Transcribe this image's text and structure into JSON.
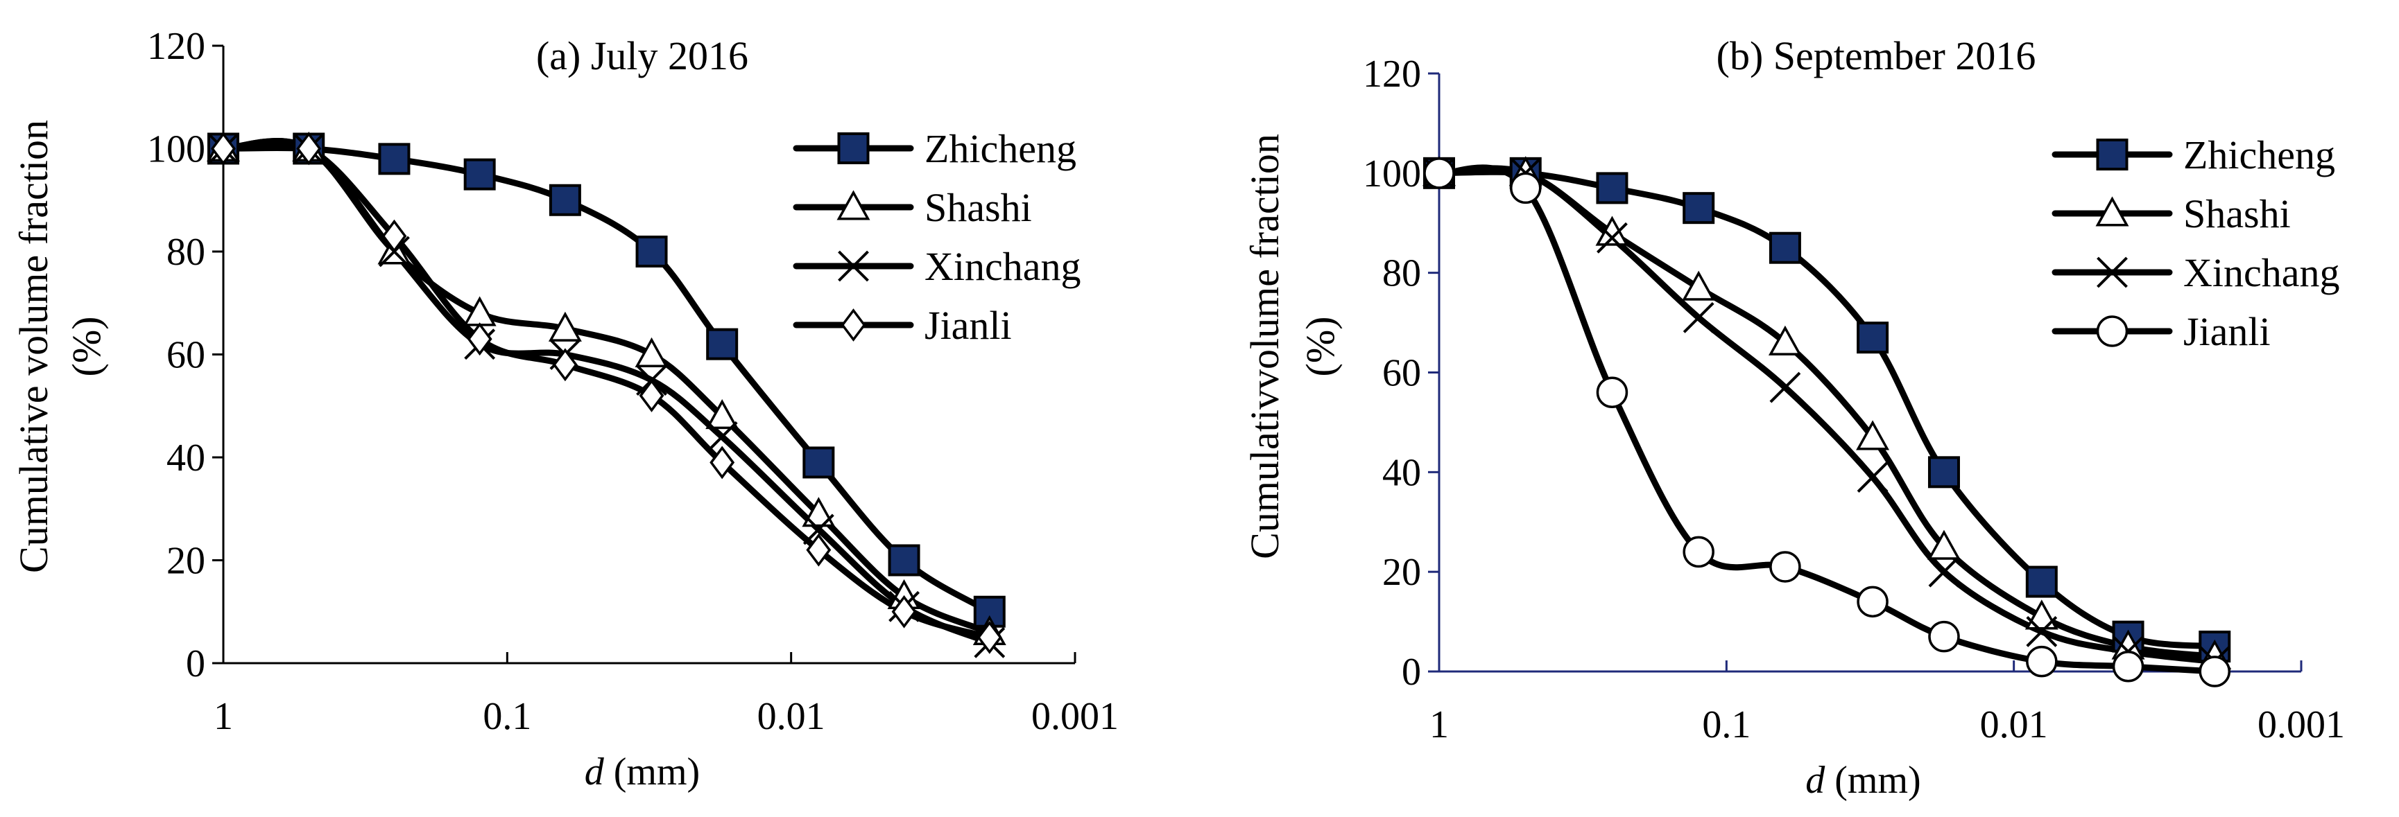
{
  "chart_data": [
    {
      "type": "line",
      "title": "(a) July 2016",
      "xlabel_var": "d",
      "xlabel_unit": " (mm)",
      "ylabel_line1": "Cumulative volume fraction",
      "ylabel_line2": "(%)",
      "xscale": "log-reversed",
      "xlim": [
        1,
        0.001
      ],
      "ylim": [
        0,
        120
      ],
      "xticks": [
        {
          "value": 1,
          "label": "1"
        },
        {
          "value": 0.1,
          "label": "0.1"
        },
        {
          "value": 0.01,
          "label": "0.01"
        },
        {
          "value": 0.001,
          "label": "0.001"
        }
      ],
      "yticks": [
        {
          "value": 0,
          "label": "0"
        },
        {
          "value": 20,
          "label": "20"
        },
        {
          "value": 40,
          "label": "40"
        },
        {
          "value": 60,
          "label": "60"
        },
        {
          "value": 80,
          "label": "80"
        },
        {
          "value": 100,
          "label": "100"
        },
        {
          "value": 120,
          "label": "120"
        }
      ],
      "x": [
        1,
        0.5,
        0.25,
        0.125,
        0.0625,
        0.031,
        0.0175,
        0.008,
        0.004,
        0.002
      ],
      "legend_position": "top-right",
      "series": [
        {
          "name": "Zhicheng",
          "marker": "square-filled",
          "values": [
            100,
            100,
            98,
            95,
            90,
            80,
            62,
            39,
            20,
            10
          ]
        },
        {
          "name": "Shashi",
          "marker": "triangle-open",
          "values": [
            100,
            100,
            80,
            68,
            65,
            60,
            48,
            29,
            13,
            6
          ]
        },
        {
          "name": "Xinchang",
          "marker": "x",
          "values": [
            100,
            100,
            80,
            62,
            60,
            55,
            44,
            26,
            11,
            4
          ]
        },
        {
          "name": "Jianli",
          "marker": "diamond-open",
          "values": [
            100,
            100,
            83,
            63,
            58,
            52,
            39,
            22,
            10,
            5
          ]
        }
      ]
    },
    {
      "type": "line",
      "title": "(b) September 2016",
      "xlabel_var": "d",
      "xlabel_unit": " (mm)",
      "ylabel_line1": "Cumulativvolume fraction",
      "ylabel_line2": "(%)",
      "xscale": "log-reversed",
      "xlim": [
        1,
        0.001
      ],
      "ylim": [
        0,
        120
      ],
      "xticks": [
        {
          "value": 1,
          "label": "1"
        },
        {
          "value": 0.1,
          "label": "0.1"
        },
        {
          "value": 0.01,
          "label": "0.01"
        },
        {
          "value": 0.001,
          "label": "0.001"
        }
      ],
      "yticks": [
        {
          "value": 0,
          "label": "0"
        },
        {
          "value": 20,
          "label": "20"
        },
        {
          "value": 40,
          "label": "40"
        },
        {
          "value": 60,
          "label": "60"
        },
        {
          "value": 80,
          "label": "80"
        },
        {
          "value": 100,
          "label": "100"
        },
        {
          "value": 120,
          "label": "120"
        }
      ],
      "x": [
        1,
        0.5,
        0.25,
        0.125,
        0.0625,
        0.031,
        0.0175,
        0.008,
        0.004,
        0.002
      ],
      "legend_position": "top-right",
      "series": [
        {
          "name": "Zhicheng",
          "marker": "square-filled",
          "values": [
            100,
            100,
            97,
            93,
            85,
            67,
            40,
            18,
            7,
            5
          ]
        },
        {
          "name": "Shashi",
          "marker": "triangle-open",
          "values": [
            100,
            100,
            88,
            77,
            66,
            47,
            25,
            11,
            5,
            3
          ]
        },
        {
          "name": "Xinchang",
          "marker": "x",
          "values": [
            100,
            100,
            87,
            71,
            57,
            39,
            20,
            8,
            4,
            2
          ]
        },
        {
          "name": "Jianli",
          "marker": "circle-open",
          "values": [
            100,
            97,
            56,
            24,
            21,
            14,
            7,
            2,
            1,
            0
          ]
        }
      ]
    }
  ]
}
